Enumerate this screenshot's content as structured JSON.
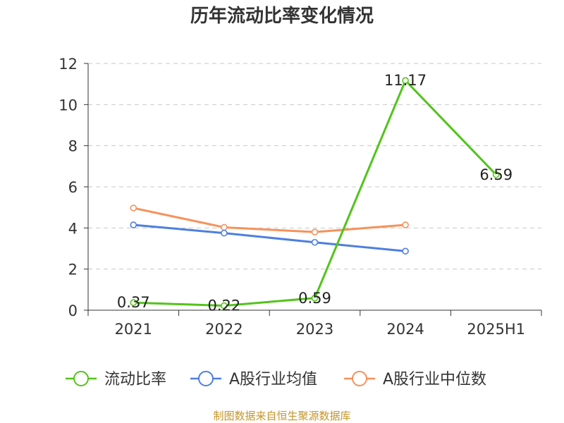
{
  "chart_data": {
    "type": "line",
    "title": "历年流动比率变化情况",
    "categories": [
      "2021",
      "2022",
      "2023",
      "2024",
      "2025H1"
    ],
    "ylim": [
      0,
      12
    ],
    "yticks": [
      0,
      2,
      4,
      6,
      8,
      10,
      12
    ],
    "grid": true,
    "legend_position": "bottom",
    "series": [
      {
        "name": "流动比率",
        "color": "#52c41a",
        "values": [
          0.37,
          0.22,
          0.59,
          11.17,
          6.59
        ],
        "labels": [
          "0.37",
          "0.22",
          "0.59",
          "11.17",
          "6.59"
        ]
      },
      {
        "name": "A股行业均值",
        "color": "#4e7fdf",
        "values": [
          4.15,
          3.75,
          3.3,
          2.87,
          null
        ]
      },
      {
        "name": "A股行业中位数",
        "color": "#f7915a",
        "values": [
          4.97,
          4.03,
          3.8,
          4.15,
          null
        ]
      }
    ]
  },
  "source": "制图数据来自恒生聚源数据库"
}
